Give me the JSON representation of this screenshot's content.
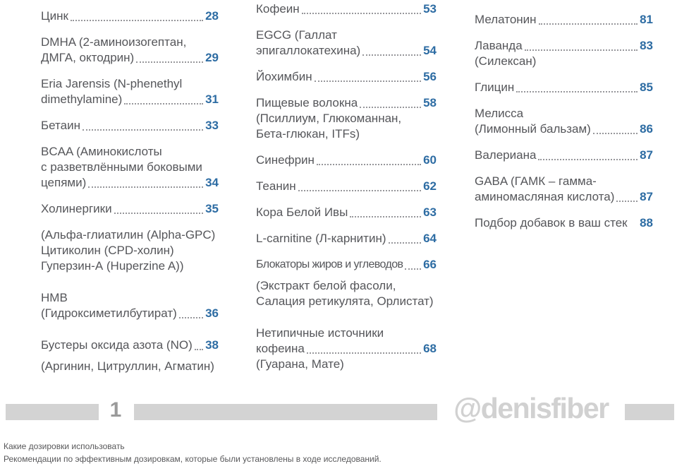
{
  "colors": {
    "accent_blue": "#2d6ca3",
    "text_gray": "#55565a",
    "dot_gray": "#97979b",
    "bar_gray": "#d3d3d3",
    "pageno_gray": "#9a9a9a",
    "watermark_gray": "#d1d1d1"
  },
  "toc": {
    "columns": [
      {
        "entries": [
          {
            "lines": [
              {
                "text": "Цинк",
                "page": "28"
              }
            ]
          },
          {
            "lines": [
              {
                "text": "DMHA (2-аминоизогептан,"
              },
              {
                "text": "ДМГА, октодрин)",
                "page": "29"
              }
            ]
          },
          {
            "lines": [
              {
                "text": "Eria Jarensis (N-phenethyl"
              },
              {
                "text": "dimethylamine)",
                "page": "31"
              }
            ]
          },
          {
            "lines": [
              {
                "text": "Бетаин",
                "page": "33"
              }
            ]
          },
          {
            "lines": [
              {
                "text": "BCAA (Аминокислоты"
              },
              {
                "text": "с разветвлёнными боковыми"
              },
              {
                "text": "цепями)",
                "page": "34"
              }
            ]
          },
          {
            "lines": [
              {
                "text": "Холинергики",
                "page": "35"
              }
            ]
          },
          {
            "lines": [
              {
                "text": "(Альфа-глиатилин (Alpha-GPC)"
              },
              {
                "text": "Цитиколин (CPD-холин)"
              },
              {
                "text": "Гуперзин-А (Huperzine A))"
              }
            ]
          },
          {
            "extra_gap": true,
            "lines": [
              {
                "text": "HMB"
              },
              {
                "text": "(Гидроксиметилбутират)",
                "page": "36"
              }
            ]
          },
          {
            "extra_gap": true,
            "lines": [
              {
                "text": "Бустеры оксида азота (NO)",
                "page": "38"
              },
              {
                "text": "(Аргинин, Цитруллин, Агматин)",
                "gap": true
              }
            ]
          }
        ]
      },
      {
        "entries": [
          {
            "lines": [
              {
                "text": "Кофеин",
                "page": "53"
              }
            ]
          },
          {
            "lines": [
              {
                "text": "EGCG (Галлат"
              },
              {
                "text": "эпигаллокатехина)",
                "page": "54"
              }
            ]
          },
          {
            "lines": [
              {
                "text": "Йохимбин",
                "page": "56"
              }
            ]
          },
          {
            "lines": [
              {
                "text": "Пищевые волокна",
                "page": "58"
              },
              {
                "text": "(Псиллиум, Глюкоманнан,"
              },
              {
                "text": "Бета-глюкан, ITFs)"
              }
            ]
          },
          {
            "lines": [
              {
                "text": "Синефрин",
                "page": "60"
              }
            ]
          },
          {
            "lines": [
              {
                "text": "Теанин",
                "page": "62"
              }
            ]
          },
          {
            "lines": [
              {
                "text": "Кора Белой Ивы",
                "page": "63"
              }
            ]
          },
          {
            "lines": [
              {
                "text": "L-carnitine (Л-карнитин)",
                "page": "64"
              }
            ]
          },
          {
            "lines": [
              {
                "text": "Блокаторы жиров и углеводов",
                "page": "66",
                "tight": true
              },
              {
                "text": "(Экстракт белой фасоли,",
                "gap": true
              },
              {
                "text": "Салация ретикулята, Орлистат)"
              }
            ]
          },
          {
            "extra_gap": true,
            "lines": [
              {
                "text": "Нетипичные источники"
              },
              {
                "text": "кофеина",
                "page": "68"
              },
              {
                "text": "(Гуарана, Мате)"
              }
            ]
          }
        ]
      },
      {
        "entries": [
          {
            "lines": [
              {
                "text": "Мелатонин",
                "page": "81"
              }
            ]
          },
          {
            "lines": [
              {
                "text": "Лаванда",
                "page": "83"
              },
              {
                "text": "(Силексан)"
              }
            ]
          },
          {
            "lines": [
              {
                "text": "Глицин",
                "page": "85"
              }
            ]
          },
          {
            "lines": [
              {
                "text": "Мелисса"
              },
              {
                "text": "(Лимонный бальзам)",
                "page": "86"
              }
            ]
          },
          {
            "lines": [
              {
                "text": "Валериана",
                "page": "87"
              }
            ]
          },
          {
            "lines": [
              {
                "text": "GABA (ГАМК – гамма-"
              },
              {
                "text": "аминомасляная кислота)",
                "page": "87"
              }
            ]
          },
          {
            "lines": [
              {
                "text": "Подбор добавок в ваш стек",
                "page": "88",
                "leader": false
              }
            ]
          }
        ]
      }
    ]
  },
  "footer": {
    "page_number": "1",
    "watermark": "@denisfiber"
  },
  "caption": {
    "line1": "Какие дозировки использовать",
    "line2": "Рекомендации по эффективным дозировкам, которые были установлены в ходе исследований."
  }
}
